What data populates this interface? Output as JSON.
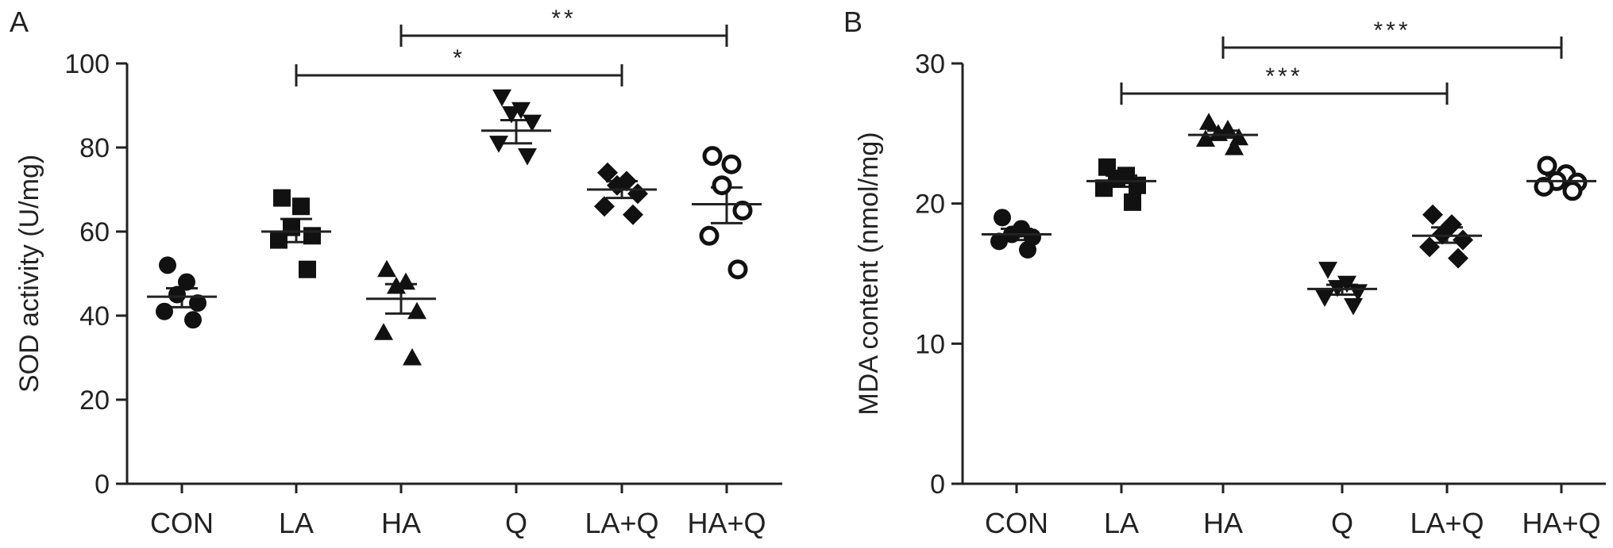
{
  "chart_data": [
    {
      "panel": "A",
      "type": "scatter",
      "ylabel": "SOD activity (U/mg)",
      "ylim": [
        0,
        100
      ],
      "yticks": [
        0,
        20,
        40,
        60,
        80,
        100
      ],
      "categories": [
        "CON",
        "LA",
        "HA",
        "Q",
        "LA+Q",
        "HA+Q"
      ],
      "marker_by_group": [
        "circle",
        "square",
        "triangle-up",
        "triangle-down",
        "diamond",
        "open-circle"
      ],
      "groups": [
        {
          "name": "CON",
          "points": [
            52,
            48,
            45,
            43,
            41,
            39
          ],
          "mean": 44.5,
          "sem_low": 42,
          "sem_high": 46.5
        },
        {
          "name": "LA",
          "points": [
            68,
            66,
            61,
            59,
            58,
            51
          ],
          "mean": 60,
          "sem_low": 57.5,
          "sem_high": 63
        },
        {
          "name": "HA",
          "points": [
            51,
            48,
            47,
            41,
            36,
            30
          ],
          "mean": 44,
          "sem_low": 40.5,
          "sem_high": 47.5
        },
        {
          "name": "Q",
          "points": [
            92,
            89,
            88,
            86,
            81,
            78
          ],
          "mean": 84,
          "sem_low": 81,
          "sem_high": 86.5
        },
        {
          "name": "LA+Q",
          "points": [
            74,
            72,
            71,
            69,
            66,
            64
          ],
          "mean": 70,
          "sem_low": 68,
          "sem_high": 72
        },
        {
          "name": "HA+Q",
          "points": [
            78,
            76,
            71,
            65,
            59,
            51
          ],
          "mean": 66.5,
          "sem_low": 62,
          "sem_high": 70.5
        }
      ],
      "significance": [
        {
          "from": "LA",
          "to": "LA+Q",
          "label": "*"
        },
        {
          "from": "HA",
          "to": "HA+Q",
          "label": "**"
        }
      ]
    },
    {
      "panel": "B",
      "type": "scatter",
      "ylabel": "MDA content (nmol/mg)",
      "ylim": [
        0,
        30
      ],
      "yticks": [
        0,
        10,
        20,
        30
      ],
      "categories": [
        "CON",
        "LA",
        "HA",
        "Q",
        "LA+Q",
        "HA+Q"
      ],
      "marker_by_group": [
        "circle",
        "square",
        "triangle-up",
        "triangle-down",
        "diamond",
        "open-circle"
      ],
      "groups": [
        {
          "name": "CON",
          "points": [
            19.0,
            18.2,
            17.8,
            17.6,
            17.3,
            16.7
          ],
          "mean": 17.8,
          "sem_low": 17.4,
          "sem_high": 18.2
        },
        {
          "name": "LA",
          "points": [
            22.6,
            22.0,
            21.8,
            21.3,
            21.1,
            20.1
          ],
          "mean": 21.6,
          "sem_low": 21.2,
          "sem_high": 22.0
        },
        {
          "name": "HA",
          "points": [
            25.8,
            25.3,
            25.0,
            24.7,
            24.6,
            24.0
          ],
          "mean": 24.9,
          "sem_low": 24.7,
          "sem_high": 25.2
        },
        {
          "name": "Q",
          "points": [
            15.3,
            14.3,
            14.0,
            13.7,
            13.3,
            12.7
          ],
          "mean": 13.9,
          "sem_low": 13.5,
          "sem_high": 14.2
        },
        {
          "name": "LA+Q",
          "points": [
            19.2,
            18.5,
            17.8,
            17.4,
            16.9,
            16.1
          ],
          "mean": 17.7,
          "sem_low": 17.2,
          "sem_high": 18.3
        },
        {
          "name": "HA+Q",
          "points": [
            22.7,
            22.1,
            21.6,
            21.5,
            21.2,
            20.9
          ],
          "mean": 21.6,
          "sem_low": 21.3,
          "sem_high": 22.0
        }
      ],
      "significance": [
        {
          "from": "LA",
          "to": "LA+Q",
          "label": "***"
        },
        {
          "from": "HA",
          "to": "HA+Q",
          "label": "***"
        }
      ]
    }
  ]
}
